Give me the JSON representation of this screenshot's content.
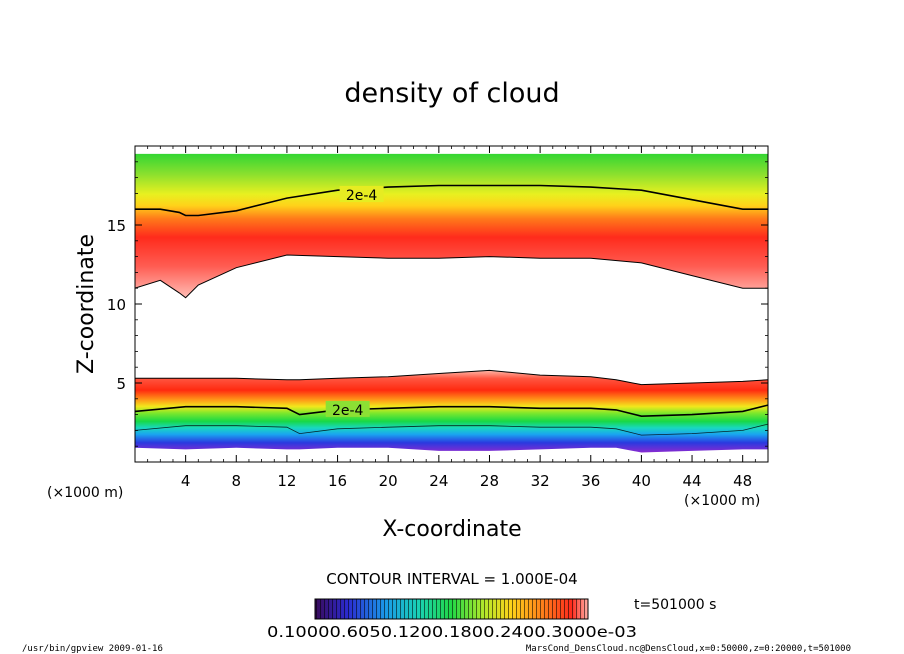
{
  "chart_data": {
    "type": "heatmap",
    "title": "density of cloud",
    "xlabel": "X-coordinate",
    "ylabel": "Z-coordinate",
    "x_unit": "(×1000 m)",
    "z_unit": "(×1000 m)",
    "xlim": [
      0,
      50
    ],
    "ylim": [
      0,
      20
    ],
    "x_ticks": [
      "4",
      "8",
      "12",
      "16",
      "20",
      "24",
      "28",
      "32",
      "36",
      "40",
      "44",
      "48"
    ],
    "x_tick_values": [
      4,
      8,
      12,
      16,
      20,
      24,
      28,
      32,
      36,
      40,
      44,
      48
    ],
    "y_ticks": [
      "5",
      "10",
      "15"
    ],
    "y_tick_values": [
      5,
      10,
      15
    ],
    "contour_label": "2e-4",
    "contour_interval": "CONTOUR INTERVAL = 1.000E-04",
    "colorbar_labels": "0.10000.6050.1200.1800.2400.3000e-03",
    "time_label": "t=501000 s",
    "footer_left": "/usr/bin/gpview  2009-01-16",
    "footer_right": "MarsCond_DensCloud.nc@DensCloud,x=0:50000,z=0:20000,t=501000",
    "upper_band": {
      "x": [
        0,
        2,
        3.5,
        4,
        5,
        8,
        12,
        16,
        20,
        24,
        28,
        32,
        36,
        40,
        44,
        48,
        50
      ],
      "top": [
        19.5,
        19.5,
        19.5,
        19.5,
        19.5,
        19.5,
        19.5,
        19.5,
        19.5,
        19.5,
        19.5,
        19.5,
        19.5,
        19.5,
        19.5,
        19.5,
        19.5
      ],
      "contour_2e-4": [
        16.0,
        16.0,
        15.8,
        15.6,
        15.6,
        15.9,
        16.7,
        17.2,
        17.4,
        17.5,
        17.5,
        17.5,
        17.4,
        17.2,
        16.6,
        16.0,
        16.0
      ],
      "bottom": [
        11.0,
        11.5,
        10.7,
        10.4,
        11.2,
        12.3,
        13.1,
        13.0,
        12.9,
        12.9,
        13.0,
        12.9,
        12.9,
        12.6,
        11.8,
        11.0,
        11.0
      ]
    },
    "lower_band": {
      "x": [
        0,
        4,
        8,
        12,
        13,
        16,
        20,
        24,
        28,
        32,
        36,
        38,
        40,
        44,
        48,
        50
      ],
      "top": [
        5.3,
        5.3,
        5.3,
        5.2,
        5.2,
        5.3,
        5.4,
        5.6,
        5.8,
        5.5,
        5.4,
        5.2,
        4.9,
        5.0,
        5.1,
        5.2
      ],
      "contour_2e-4": [
        3.2,
        3.5,
        3.5,
        3.4,
        3.0,
        3.3,
        3.4,
        3.5,
        3.5,
        3.4,
        3.4,
        3.3,
        2.9,
        3.0,
        3.2,
        3.6
      ],
      "bottom": [
        0.9,
        0.8,
        0.9,
        0.8,
        0.8,
        0.9,
        0.9,
        0.7,
        0.7,
        0.8,
        0.9,
        0.9,
        0.6,
        0.7,
        0.8,
        0.8
      ]
    }
  }
}
